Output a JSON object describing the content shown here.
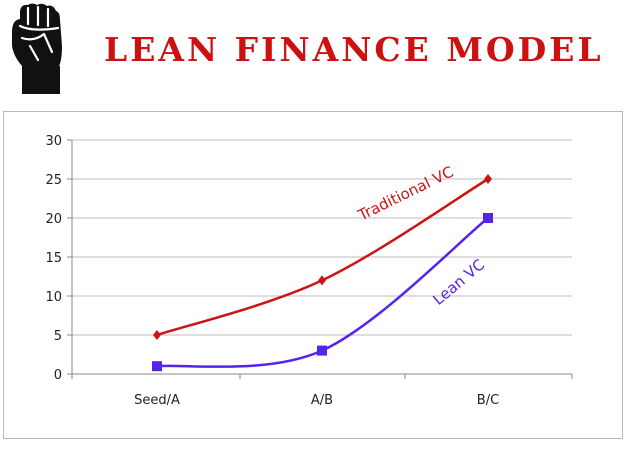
{
  "header": {
    "title": "LEAN FINANCE MODEL",
    "logo_icon": "raised-fist-icon"
  },
  "chart_data": {
    "type": "line",
    "title": "",
    "xlabel": "",
    "ylabel": "",
    "categories": [
      "Seed/A",
      "A/B",
      "B/C"
    ],
    "ylim": [
      0,
      30
    ],
    "yticks": [
      0,
      5,
      10,
      15,
      20,
      25,
      30
    ],
    "grid": true,
    "legend": "inline-labels",
    "series": [
      {
        "name": "Traditional VC",
        "values": [
          5,
          12,
          25
        ],
        "color": "#cc1414",
        "marker": "diamond"
      },
      {
        "name": "Lean VC",
        "values": [
          1,
          3,
          20
        ],
        "color": "#5522ee",
        "marker": "square"
      }
    ]
  }
}
